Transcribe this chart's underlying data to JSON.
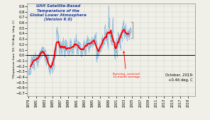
{
  "title_lines": [
    "UAH Satellite-Based",
    "Temperature of the",
    "Global Lower Atmosphere",
    "(Version 6.0)"
  ],
  "title_color": "#1E3EA0",
  "ylabel": "T Departure from '81-'10 Avg. (deg. C)",
  "ylim": [
    -0.75,
    0.95
  ],
  "yticks": [
    -0.7,
    -0.6,
    -0.5,
    -0.4,
    -0.3,
    -0.2,
    -0.1,
    0.0,
    0.1,
    0.2,
    0.3,
    0.4,
    0.5,
    0.6,
    0.7,
    0.8,
    0.9
  ],
  "annotation_text": "October, 2019:\n+0.46 deg. C",
  "annotation_color": "black",
  "running_avg_label": "Running, centered\n13-month average",
  "running_avg_color": "red",
  "line_color": "#7AADD4",
  "bg_color": "#F0F0E8",
  "monthly_data": [
    -0.317,
    -0.307,
    -0.282,
    -0.269,
    -0.309,
    -0.288,
    -0.209,
    -0.139,
    -0.049,
    -0.102,
    -0.189,
    -0.173,
    -0.048,
    -0.148,
    -0.044,
    -0.2,
    -0.225,
    -0.139,
    -0.035,
    0.02,
    -0.02,
    -0.05,
    -0.063,
    -0.071,
    -0.135,
    -0.044,
    -0.167,
    -0.04,
    -0.088,
    -0.082,
    -0.054,
    0.002,
    0.012,
    0.035,
    -0.031,
    0.01,
    0.049,
    0.013,
    0.086,
    0.12,
    0.022,
    0.12,
    0.063,
    0.101,
    0.107,
    0.099,
    0.034,
    0.018,
    -0.059,
    0.074,
    0.051,
    0.032,
    -0.091,
    -0.144,
    -0.032,
    -0.035,
    -0.104,
    -0.022,
    -0.027,
    -0.074,
    -0.246,
    -0.218,
    -0.238,
    -0.311,
    -0.286,
    -0.282,
    -0.247,
    -0.183,
    -0.175,
    -0.187,
    -0.197,
    -0.278,
    -0.125,
    -0.026,
    -0.099,
    -0.209,
    -0.141,
    -0.067,
    0.072,
    0.09,
    0.024,
    0.069,
    0.076,
    0.143,
    0.481,
    0.479,
    0.395,
    0.378,
    0.243,
    0.335,
    0.222,
    0.174,
    0.053,
    0.034,
    0.092,
    0.215,
    0.145,
    0.16,
    0.206,
    0.041,
    0.103,
    0.195,
    0.185,
    0.277,
    0.231,
    0.212,
    0.103,
    0.074,
    0.005,
    0.06,
    0.082,
    0.241,
    0.24,
    0.138,
    0.203,
    0.176,
    0.085,
    0.089,
    0.056,
    0.076,
    0.037,
    0.103,
    0.091,
    0.164,
    0.217,
    0.274,
    0.127,
    0.221,
    0.173,
    0.08,
    0.041,
    0.096,
    0.13,
    0.08,
    0.141,
    0.193,
    0.175,
    0.272,
    0.239,
    0.209,
    0.196,
    0.178,
    0.239,
    0.348,
    0.244,
    0.068,
    0.081,
    0.173,
    0.063,
    0.213,
    0.2,
    0.209,
    0.146,
    0.191,
    0.185,
    0.152,
    0.093,
    0.038,
    0.018,
    0.019,
    0.072,
    0.07,
    0.095,
    0.151,
    0.149,
    0.241,
    0.171,
    0.21,
    0.07,
    0.043,
    0.046,
    0.073,
    0.201,
    0.212,
    0.247,
    0.176,
    0.325,
    0.234,
    0.282,
    0.258,
    0.103,
    0.11,
    0.174,
    0.26,
    0.195,
    0.192,
    0.214,
    0.212,
    0.242,
    0.296,
    0.258,
    0.27,
    0.189,
    0.238,
    0.248,
    0.231,
    0.259,
    0.339,
    0.266,
    0.264,
    0.296,
    0.381,
    0.301,
    0.224,
    -0.08,
    0.06,
    0.086,
    -0.022,
    0.005,
    0.072,
    0.059,
    0.097,
    0.084,
    0.177,
    0.116,
    0.118,
    0.108,
    0.136,
    0.245,
    0.174,
    0.33,
    0.239,
    0.182,
    0.213,
    0.217,
    0.286,
    0.247,
    0.285,
    0.259,
    0.532,
    0.378,
    0.362,
    0.318,
    0.33,
    0.442,
    0.38,
    0.248,
    0.268,
    0.215,
    0.165,
    0.552,
    0.873,
    0.651,
    0.545,
    0.394,
    0.386,
    0.385,
    0.297,
    0.243,
    0.426,
    0.328,
    0.224,
    0.544,
    0.658,
    0.445,
    0.268,
    0.228,
    0.128,
    0.047,
    -0.035,
    0.007,
    0.101,
    0.19,
    0.268,
    0.101,
    0.008,
    0.074,
    0.271,
    0.186,
    0.393,
    0.36,
    0.33,
    0.249,
    0.324,
    0.343,
    0.252,
    0.139,
    0.377,
    0.421,
    0.378,
    0.296,
    0.463,
    0.537,
    0.543,
    0.521,
    0.614,
    0.454,
    0.36,
    0.489,
    0.413,
    0.398,
    0.542,
    0.444,
    0.36,
    0.367,
    0.327,
    0.305,
    0.438,
    0.403,
    0.413,
    0.386,
    0.399,
    0.337,
    0.424,
    0.411,
    0.464,
    0.449,
    0.46
  ],
  "start_year": 1979,
  "start_month": 1,
  "xtick_years": [
    1979,
    1981,
    1983,
    1985,
    1987,
    1989,
    1991,
    1993,
    1995,
    1997,
    1999,
    2001,
    2003,
    2005,
    2007,
    2009,
    2011,
    2013,
    2015,
    2017,
    2019
  ],
  "grid_color": "#CCCCCC",
  "zero_line_color": "black",
  "errorbar_color": "#7AADD4",
  "bracket_color": "#999999"
}
